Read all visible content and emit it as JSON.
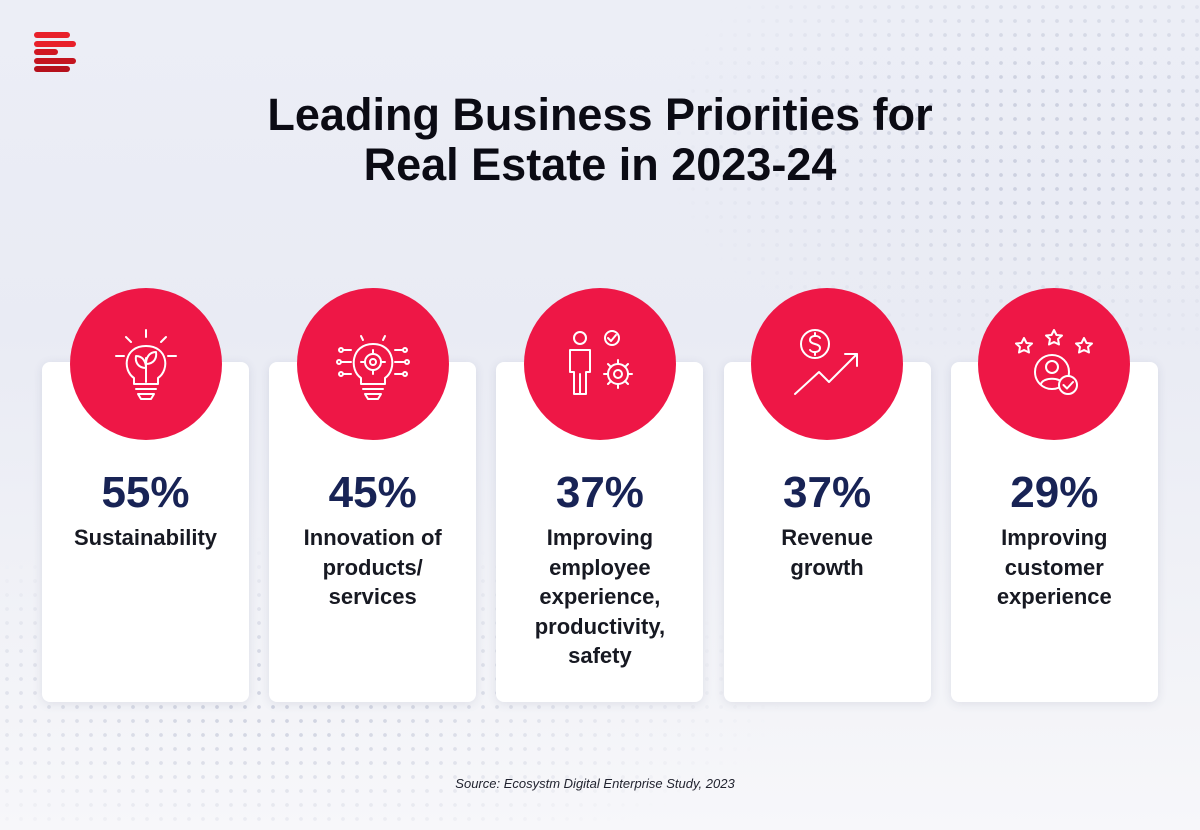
{
  "title_line1": "Leading Business Priorities for",
  "title_line2": "Real Estate in 2023-24",
  "source": "Source: Ecosystm Digital Enterprise Study, 2023",
  "colors": {
    "accent": "#ee1746",
    "number": "#182355",
    "logo_red": "#e8202a",
    "logo_dark": "#b5101c"
  },
  "chart_data": {
    "type": "bar",
    "title": "Leading Business Priorities for Real Estate in 2023-24",
    "categories": [
      "Sustainability",
      "Innovation of products/ services",
      "Improving employee experience, productivity, safety",
      "Revenue growth",
      "Improving customer experience"
    ],
    "values": [
      55,
      45,
      37,
      37,
      29
    ],
    "value_labels": [
      "55%",
      "45%",
      "37%",
      "37%",
      "29%"
    ],
    "icons": [
      "lightbulb-leaf-icon",
      "lightbulb-gear-icon",
      "person-gear-icon",
      "dollar-growth-icon",
      "customer-stars-icon"
    ],
    "label_lines": [
      [
        "Sustainability"
      ],
      [
        "Innovation of",
        "products/",
        "services"
      ],
      [
        "Improving",
        "employee",
        "experience,",
        "productivity,",
        "safety"
      ],
      [
        "Revenue",
        "growth"
      ],
      [
        "Improving",
        "customer",
        "experience"
      ]
    ]
  }
}
